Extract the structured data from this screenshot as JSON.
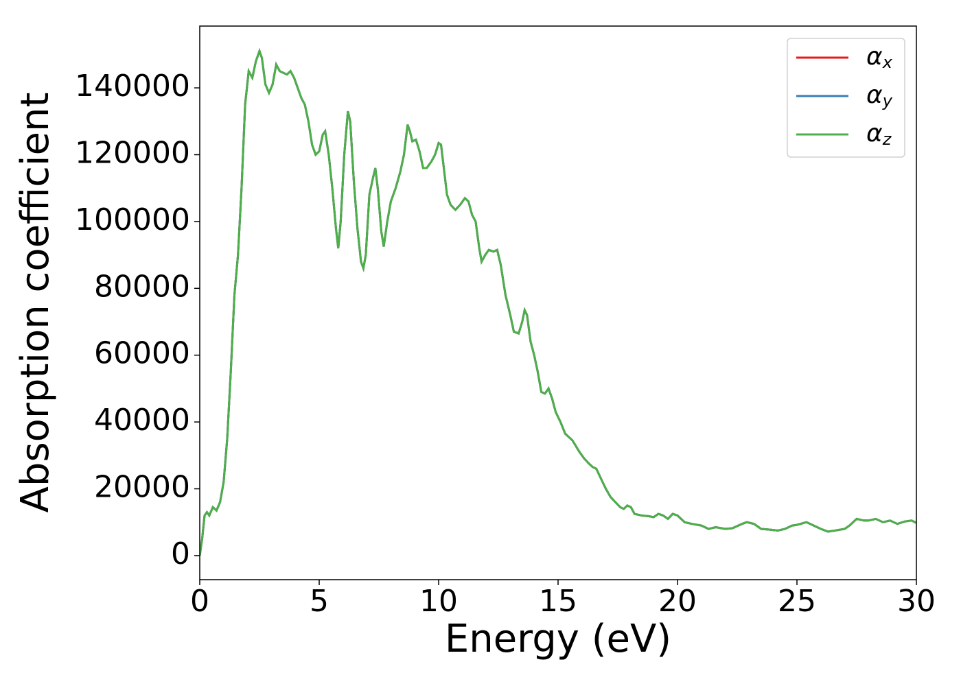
{
  "chart_data": {
    "type": "line",
    "xlabel": "Energy (eV)",
    "ylabel": "Absorption coefficient",
    "xlim": [
      0,
      30
    ],
    "ylim": [
      -7200,
      158500
    ],
    "xticks": [
      0,
      5,
      10,
      15,
      20,
      25,
      30
    ],
    "yticks": [
      0,
      20000,
      40000,
      60000,
      80000,
      100000,
      120000,
      140000
    ],
    "legend": "upper right",
    "x": [
      0,
      0.1,
      0.2,
      0.3,
      0.4,
      0.55,
      0.7,
      0.85,
      1.0,
      1.15,
      1.3,
      1.45,
      1.6,
      1.75,
      1.9,
      2.05,
      2.2,
      2.35,
      2.5,
      2.6,
      2.75,
      2.9,
      3.05,
      3.2,
      3.35,
      3.5,
      3.65,
      3.8,
      3.95,
      4.1,
      4.25,
      4.4,
      4.55,
      4.7,
      4.85,
      5.0,
      5.15,
      5.25,
      5.4,
      5.55,
      5.7,
      5.8,
      5.9,
      6.05,
      6.2,
      6.3,
      6.45,
      6.6,
      6.75,
      6.85,
      6.95,
      7.1,
      7.25,
      7.35,
      7.45,
      7.6,
      7.7,
      7.85,
      8.0,
      8.2,
      8.4,
      8.55,
      8.7,
      8.8,
      8.9,
      9.05,
      9.2,
      9.35,
      9.5,
      9.7,
      9.85,
      10.0,
      10.1,
      10.2,
      10.35,
      10.5,
      10.7,
      10.9,
      11.1,
      11.25,
      11.4,
      11.55,
      11.7,
      11.8,
      11.95,
      12.1,
      12.3,
      12.45,
      12.6,
      12.8,
      13.0,
      13.15,
      13.35,
      13.5,
      13.6,
      13.7,
      13.85,
      14.0,
      14.15,
      14.3,
      14.45,
      14.6,
      14.75,
      14.9,
      15.1,
      15.3,
      15.6,
      15.9,
      16.1,
      16.3,
      16.45,
      16.6,
      16.8,
      17.0,
      17.2,
      17.4,
      17.6,
      17.75,
      17.9,
      18.05,
      18.2,
      18.5,
      18.8,
      19.0,
      19.2,
      19.4,
      19.6,
      19.8,
      20.0,
      20.3,
      20.6,
      21.0,
      21.3,
      21.6,
      22.0,
      22.3,
      22.7,
      22.9,
      23.2,
      23.5,
      23.8,
      24.2,
      24.5,
      24.8,
      25.0,
      25.4,
      25.7,
      26.0,
      26.3,
      26.6,
      27.0,
      27.2,
      27.5,
      27.8,
      28.0,
      28.3,
      28.6,
      28.9,
      29.2,
      29.5,
      29.8,
      30.0
    ],
    "series": [
      {
        "name": "αx",
        "color": "#e41a1c",
        "values": [
          0,
          5000,
          12000,
          13000,
          12000,
          14500,
          13500,
          16000,
          22000,
          35000,
          55000,
          78000,
          90000,
          110000,
          135000,
          145000,
          143000,
          148000,
          151000,
          149000,
          141000,
          138500,
          141000,
          147000,
          145000,
          144500,
          144000,
          145000,
          143000,
          140000,
          137000,
          135000,
          130000,
          123000,
          120000,
          121000,
          126000,
          127000,
          120000,
          110000,
          98000,
          92000,
          100000,
          120000,
          133000,
          130000,
          112000,
          98000,
          88000,
          86000,
          90000,
          108000,
          113000,
          116000,
          110000,
          97000,
          92500,
          100000,
          106000,
          110000,
          115000,
          120000,
          129000,
          127000,
          124000,
          124500,
          121000,
          116000,
          116000,
          118000,
          120000,
          123500,
          123000,
          117000,
          108000,
          105000,
          103500,
          105000,
          107000,
          106000,
          102000,
          100000,
          92000,
          88000,
          90000,
          91500,
          91000,
          91500,
          87000,
          78000,
          72000,
          67000,
          66500,
          70000,
          73500,
          72000,
          64000,
          60000,
          55000,
          49000,
          48500,
          50000,
          47000,
          43000,
          40000,
          36500,
          34500,
          31000,
          29000,
          27500,
          26500,
          26000,
          23000,
          20000,
          17500,
          16000,
          14500,
          14000,
          15000,
          14500,
          12500,
          12000,
          11800,
          11500,
          12500,
          12000,
          11000,
          12500,
          12000,
          10000,
          9500,
          9000,
          8000,
          8500,
          8000,
          8200,
          9500,
          10000,
          9500,
          8000,
          7800,
          7500,
          8000,
          9000,
          9200,
          10000,
          9000,
          8000,
          7200,
          7500,
          8000,
          9000,
          11000,
          10500,
          10500,
          11000,
          10000,
          10500,
          9500,
          10200,
          10500,
          9800
        ]
      },
      {
        "name": "αy",
        "color": "#377eb8",
        "values": [
          0,
          5000,
          12000,
          13000,
          12000,
          14500,
          13500,
          16000,
          22000,
          35000,
          55000,
          78000,
          90000,
          110000,
          135000,
          145000,
          143000,
          148000,
          151000,
          149000,
          141000,
          138500,
          141000,
          147000,
          145000,
          144500,
          144000,
          145000,
          143000,
          140000,
          137000,
          135000,
          130000,
          123000,
          120000,
          121000,
          126000,
          127000,
          120000,
          110000,
          98000,
          92000,
          100000,
          120000,
          133000,
          130000,
          112000,
          98000,
          88000,
          86000,
          90000,
          108000,
          113000,
          116000,
          110000,
          97000,
          92500,
          100000,
          106000,
          110000,
          115000,
          120000,
          129000,
          127000,
          124000,
          124500,
          121000,
          116000,
          116000,
          118000,
          120000,
          123500,
          123000,
          117000,
          108000,
          105000,
          103500,
          105000,
          107000,
          106000,
          102000,
          100000,
          92000,
          88000,
          90000,
          91500,
          91000,
          91500,
          87000,
          78000,
          72000,
          67000,
          66500,
          70000,
          73500,
          72000,
          64000,
          60000,
          55000,
          49000,
          48500,
          50000,
          47000,
          43000,
          40000,
          36500,
          34500,
          31000,
          29000,
          27500,
          26500,
          26000,
          23000,
          20000,
          17500,
          16000,
          14500,
          14000,
          15000,
          14500,
          12500,
          12000,
          11800,
          11500,
          12500,
          12000,
          11000,
          12500,
          12000,
          10000,
          9500,
          9000,
          8000,
          8500,
          8000,
          8200,
          9500,
          10000,
          9500,
          8000,
          7800,
          7500,
          8000,
          9000,
          9200,
          10000,
          9000,
          8000,
          7200,
          7500,
          8000,
          9000,
          11000,
          10500,
          10500,
          11000,
          10000,
          10500,
          9500,
          10200,
          10500,
          9800
        ]
      },
      {
        "name": "αz",
        "color": "#4daf4a",
        "values": [
          0,
          5000,
          12000,
          13000,
          12000,
          14500,
          13500,
          16000,
          22000,
          35000,
          55000,
          78000,
          90000,
          110000,
          135000,
          145000,
          143000,
          148000,
          151000,
          149000,
          141000,
          138500,
          141000,
          147000,
          145000,
          144500,
          144000,
          145000,
          143000,
          140000,
          137000,
          135000,
          130000,
          123000,
          120000,
          121000,
          126000,
          127000,
          120000,
          110000,
          98000,
          92000,
          100000,
          120000,
          133000,
          130000,
          112000,
          98000,
          88000,
          86000,
          90000,
          108000,
          113000,
          116000,
          110000,
          97000,
          92500,
          100000,
          106000,
          110000,
          115000,
          120000,
          129000,
          127000,
          124000,
          124500,
          121000,
          116000,
          116000,
          118000,
          120000,
          123500,
          123000,
          117000,
          108000,
          105000,
          103500,
          105000,
          107000,
          106000,
          102000,
          100000,
          92000,
          88000,
          90000,
          91500,
          91000,
          91500,
          87000,
          78000,
          72000,
          67000,
          66500,
          70000,
          73500,
          72000,
          64000,
          60000,
          55000,
          49000,
          48500,
          50000,
          47000,
          43000,
          40000,
          36500,
          34500,
          31000,
          29000,
          27500,
          26500,
          26000,
          23000,
          20000,
          17500,
          16000,
          14500,
          14000,
          15000,
          14500,
          12500,
          12000,
          11800,
          11500,
          12500,
          12000,
          11000,
          12500,
          12000,
          10000,
          9500,
          9000,
          8000,
          8500,
          8000,
          8200,
          9500,
          10000,
          9500,
          8000,
          7800,
          7500,
          8000,
          9000,
          9200,
          10000,
          9000,
          8000,
          7200,
          7500,
          8000,
          9000,
          11000,
          10500,
          10500,
          11000,
          10000,
          10500,
          9500,
          10200,
          10500,
          9800
        ]
      }
    ]
  }
}
